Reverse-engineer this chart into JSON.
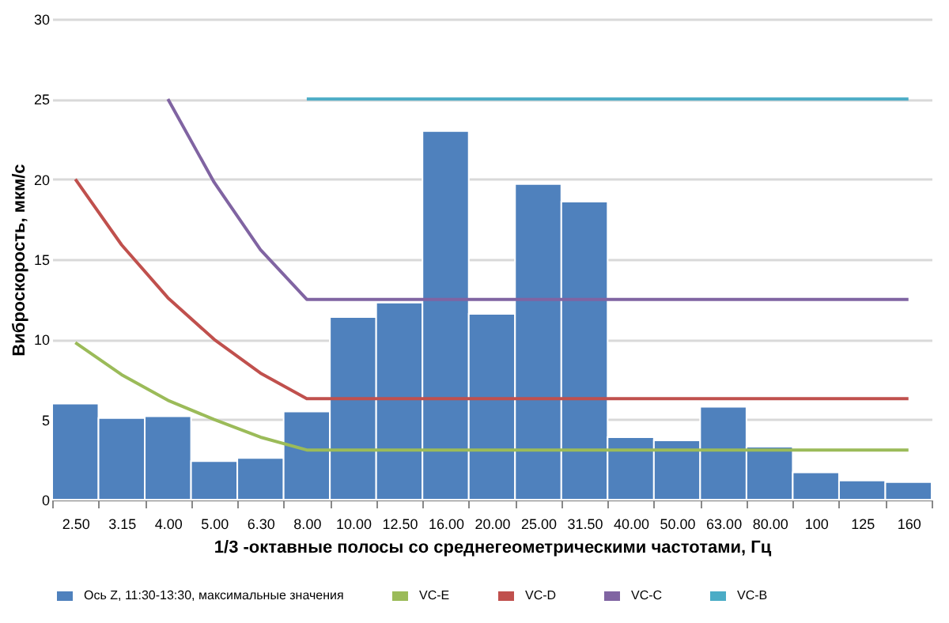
{
  "chart_data": {
    "type": "bar",
    "xlabel": "1/3 -октавные полосы со среднегеометрическими частотами, Гц",
    "ylabel": "Виброскорость, мкм/с",
    "categories": [
      "2.50",
      "3.15",
      "4.00",
      "5.00",
      "6.30",
      "8.00",
      "10.00",
      "12.50",
      "16.00",
      "20.00",
      "25.00",
      "31.50",
      "40.00",
      "50.00",
      "63.00",
      "80.00",
      "100",
      "125",
      "160"
    ],
    "series": [
      {
        "name": "Ось Z, 11:30-13:30, максимальные значения",
        "color": "#4f81bd",
        "values": [
          6.0,
          5.1,
          5.2,
          2.4,
          2.6,
          5.5,
          11.4,
          12.3,
          23.0,
          11.6,
          19.7,
          18.6,
          3.9,
          3.7,
          5.8,
          3.3,
          1.7,
          1.2,
          1.1
        ]
      },
      {
        "name": "VC-E",
        "type": "line",
        "color": "#9bbb59",
        "values": [
          9.8,
          7.8,
          6.2,
          5.0,
          3.9,
          3.1,
          3.1,
          3.1,
          3.1,
          3.1,
          3.1,
          3.1,
          3.1,
          3.1,
          3.1,
          3.1,
          3.1,
          3.1,
          3.1
        ]
      },
      {
        "name": "VC-D",
        "type": "line",
        "color": "#c0504d",
        "values": [
          20,
          15.9,
          12.6,
          10.0,
          7.9,
          6.3,
          6.3,
          6.3,
          6.3,
          6.3,
          6.3,
          6.3,
          6.3,
          6.3,
          6.3,
          6.3,
          6.3,
          6.3,
          6.3
        ]
      },
      {
        "name": "VC-C",
        "type": "line",
        "color": "#8064a2",
        "values": [
          null,
          null,
          25.0,
          19.8,
          15.6,
          12.5,
          12.5,
          12.5,
          12.5,
          12.5,
          12.5,
          12.5,
          12.5,
          12.5,
          12.5,
          12.5,
          12.5,
          12.5,
          12.5
        ]
      },
      {
        "name": "VC-B",
        "type": "line",
        "color": "#4bacc6",
        "values": [
          null,
          null,
          null,
          null,
          null,
          25,
          25,
          25,
          25,
          25,
          25,
          25,
          25,
          25,
          25,
          25,
          25,
          25,
          25
        ]
      }
    ],
    "ylim": [
      0,
      30
    ],
    "yticks": [
      0,
      5,
      10,
      15,
      20,
      25,
      30
    ],
    "grid": "y",
    "legend": "bottom",
    "marker": "none"
  }
}
